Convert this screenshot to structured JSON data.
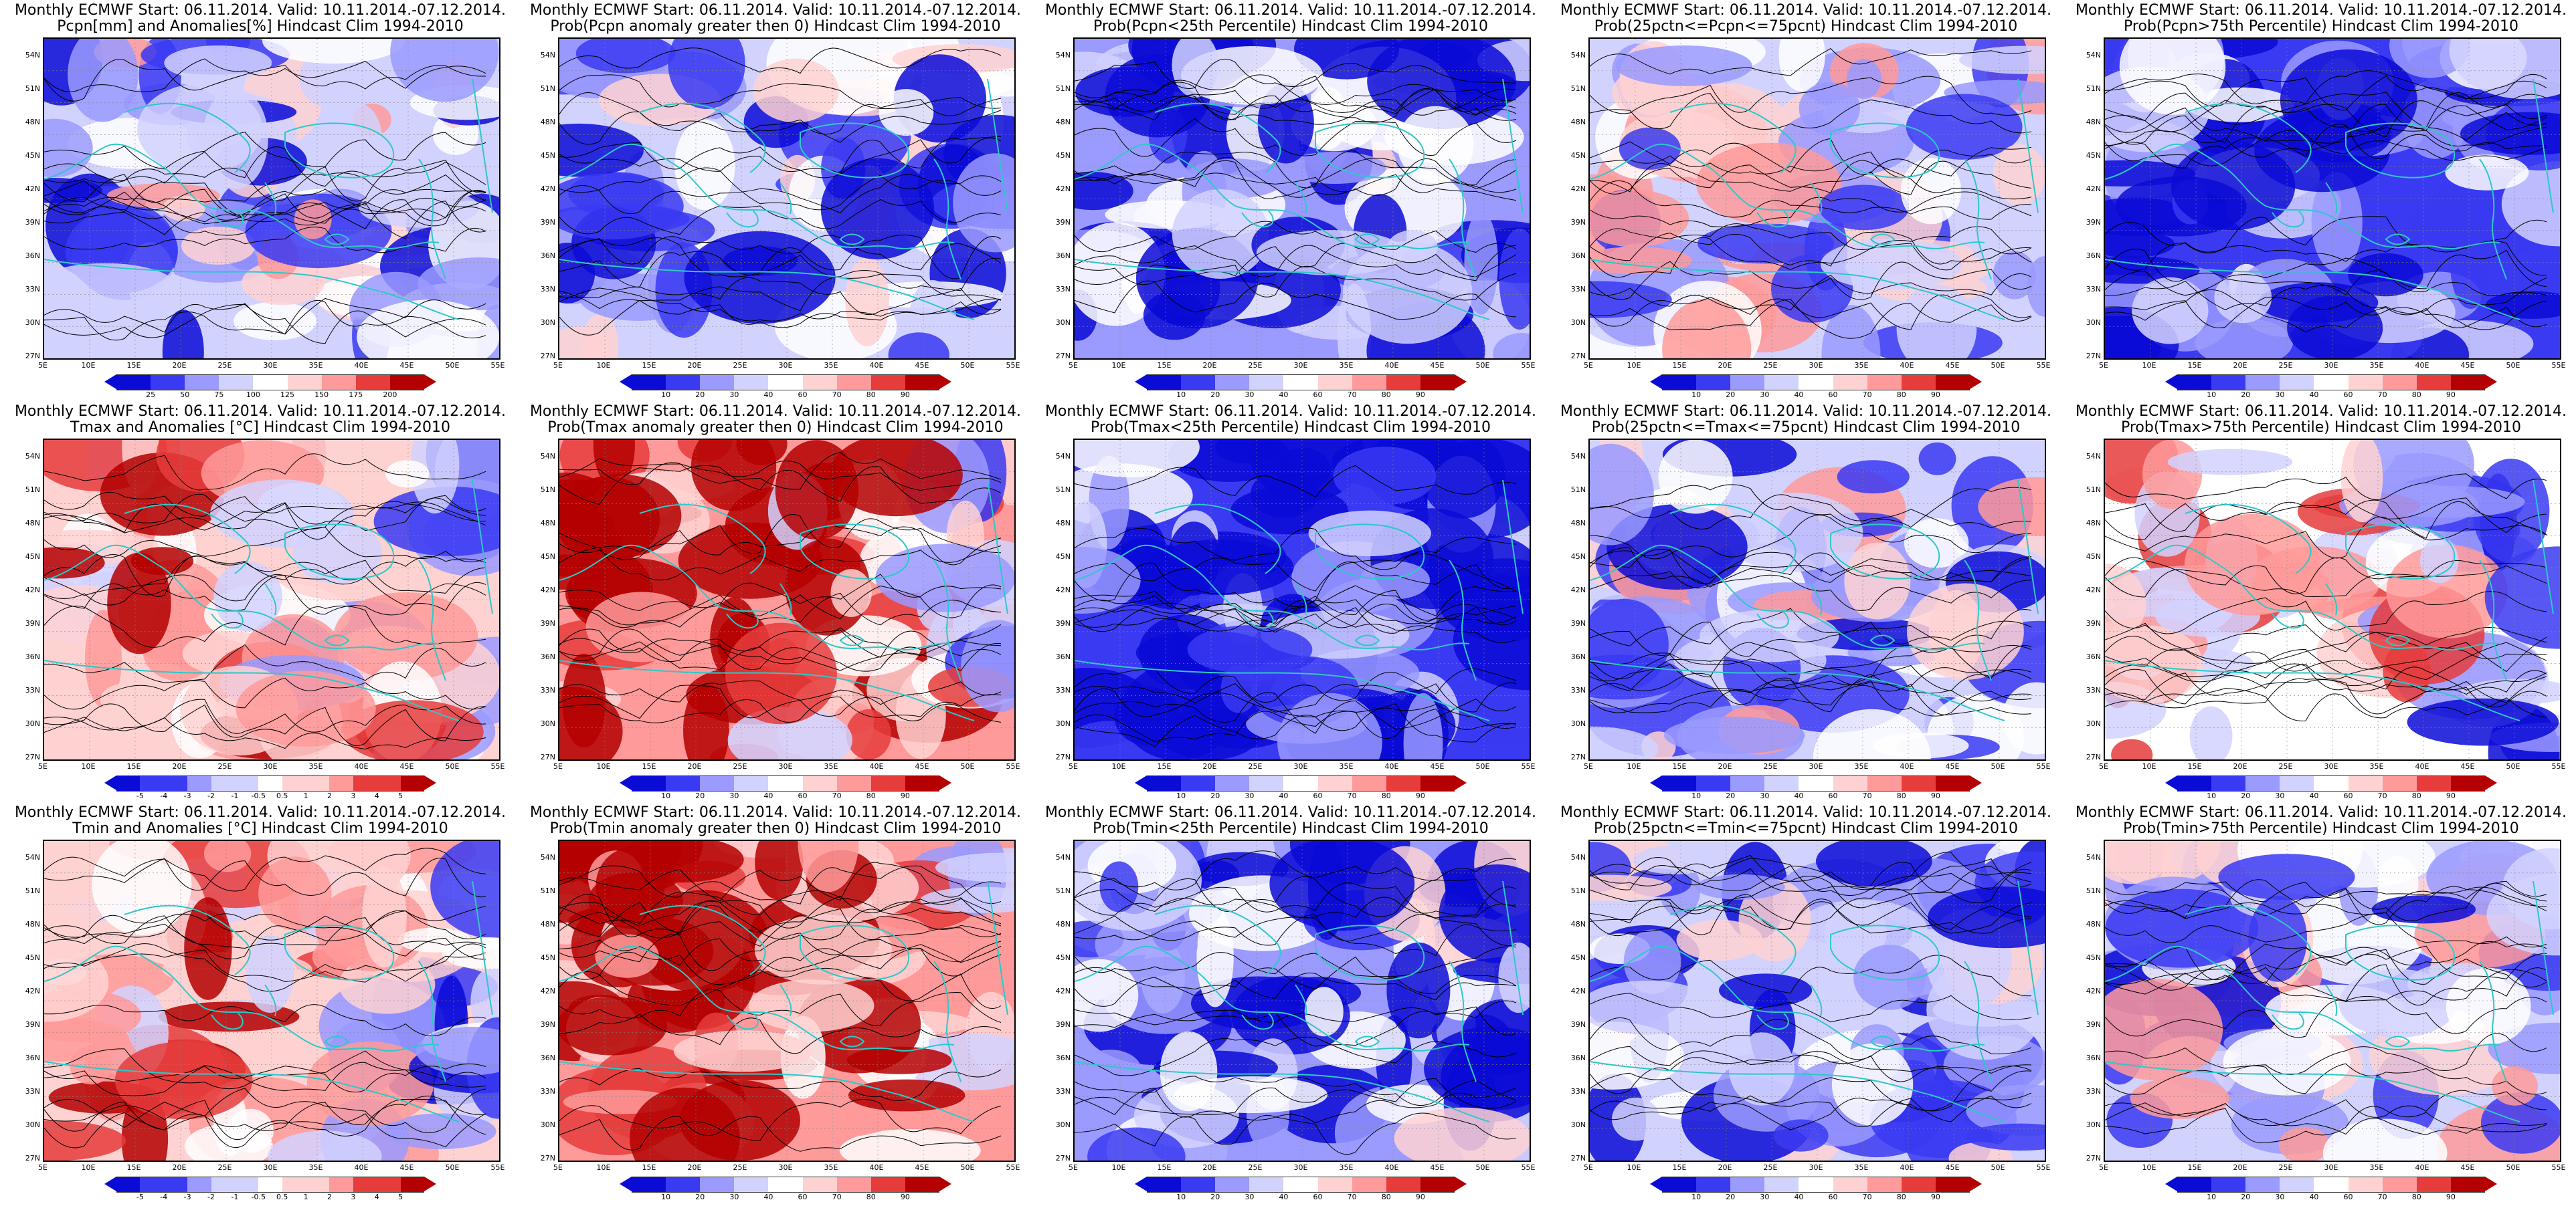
{
  "layout_rows": 3,
  "layout_cols": 5,
  "panels": [
    {
      "title1": "Monthly ECMWF Start: 06.11.2014. Valid: 10.11.2014.-07.12.2014.",
      "title2": "Pcpn[mm] and Anomalies[%] Hindcast Clim 1994-2010",
      "scheme": "anom",
      "bias": -0.3,
      "seed": 11,
      "legend": [
        "25",
        "50",
        "75",
        "100",
        "125",
        "150",
        "175",
        "200"
      ]
    },
    {
      "title1": "Monthly ECMWF Start: 06.11.2014. Valid: 10.11.2014.-07.12.2014.",
      "title2": "Prob(Pcpn anomaly greater then 0) Hindcast Clim 1994-2010",
      "scheme": "prob",
      "bias": -0.35,
      "seed": 12,
      "legend": [
        "10",
        "20",
        "30",
        "40",
        "60",
        "70",
        "80",
        "90"
      ]
    },
    {
      "title1": "Monthly ECMWF Start: 06.11.2014. Valid: 10.11.2014.-07.12.2014.",
      "title2": "Prob(Pcpn<25th Percentile) Hindcast Clim 1994-2010",
      "scheme": "prob",
      "bias": -0.6,
      "seed": 13,
      "legend": [
        "10",
        "20",
        "30",
        "40",
        "60",
        "70",
        "80",
        "90"
      ]
    },
    {
      "title1": "Monthly ECMWF Start: 06.11.2014. Valid: 10.11.2014.-07.12.2014.",
      "title2": "Prob(25pctn<=Pcpn<=75pcnt) Hindcast Clim 1994-2010",
      "scheme": "prob",
      "bias": -0.15,
      "seed": 14,
      "legend": [
        "10",
        "20",
        "30",
        "40",
        "60",
        "70",
        "80",
        "90"
      ]
    },
    {
      "title1": "Monthly ECMWF Start: 06.11.2014. Valid: 10.11.2014.-07.12.2014.",
      "title2": "Prob(Pcpn>75th Percentile) Hindcast Clim 1994-2010",
      "scheme": "prob",
      "bias": -0.65,
      "seed": 15,
      "legend": [
        "10",
        "20",
        "30",
        "40",
        "60",
        "70",
        "80",
        "90"
      ]
    },
    {
      "title1": "Monthly ECMWF Start: 06.11.2014. Valid: 10.11.2014.-07.12.2014.",
      "title2": "Tmax and Anomalies [°C] Hindcast Clim 1994-2010",
      "scheme": "anom",
      "bias": 0.25,
      "seed": 21,
      "legend": [
        "-5",
        "-4",
        "-3",
        "-2",
        "-1",
        "-0.5",
        "0.5",
        "1",
        "2",
        "3",
        "4",
        "5"
      ]
    },
    {
      "title1": "Monthly ECMWF Start: 06.11.2014. Valid: 10.11.2014.-07.12.2014.",
      "title2": "Prob(Tmax anomaly greater then 0) Hindcast Clim 1994-2010",
      "scheme": "prob",
      "bias": 0.55,
      "seed": 22,
      "legend": [
        "10",
        "20",
        "30",
        "40",
        "60",
        "70",
        "80",
        "90"
      ]
    },
    {
      "title1": "Monthly ECMWF Start: 06.11.2014. Valid: 10.11.2014.-07.12.2014.",
      "title2": "Prob(Tmax<25th Percentile) Hindcast Clim 1994-2010",
      "scheme": "prob",
      "bias": -0.7,
      "seed": 23,
      "legend": [
        "10",
        "20",
        "30",
        "40",
        "60",
        "70",
        "80",
        "90"
      ]
    },
    {
      "title1": "Monthly ECMWF Start: 06.11.2014. Valid: 10.11.2014.-07.12.2014.",
      "title2": "Prob(25pctn<=Tmax<=75pcnt) Hindcast Clim 1994-2010",
      "scheme": "prob",
      "bias": -0.2,
      "seed": 24,
      "legend": [
        "10",
        "20",
        "30",
        "40",
        "60",
        "70",
        "80",
        "90"
      ]
    },
    {
      "title1": "Monthly ECMWF Start: 06.11.2014. Valid: 10.11.2014.-07.12.2014.",
      "title2": "Prob(Tmax>75th Percentile) Hindcast Clim 1994-2010",
      "scheme": "prob",
      "bias": 0.05,
      "seed": 25,
      "legend": [
        "10",
        "20",
        "30",
        "40",
        "60",
        "70",
        "80",
        "90"
      ]
    },
    {
      "title1": "Monthly ECMWF Start: 06.11.2014. Valid: 10.11.2014.-07.12.2014.",
      "title2": "Tmin and Anomalies [°C] Hindcast Clim 1994-2010",
      "scheme": "anom",
      "bias": 0.15,
      "seed": 31,
      "legend": [
        "-5",
        "-4",
        "-3",
        "-2",
        "-1",
        "-0.5",
        "0.5",
        "1",
        "2",
        "3",
        "4",
        "5"
      ]
    },
    {
      "title1": "Monthly ECMWF Start: 06.11.2014. Valid: 10.11.2014.-07.12.2014.",
      "title2": "Prob(Tmin anomaly greater then 0) Hindcast Clim 1994-2010",
      "scheme": "prob",
      "bias": 0.6,
      "seed": 32,
      "legend": [
        "10",
        "20",
        "30",
        "40",
        "60",
        "70",
        "80",
        "90"
      ]
    },
    {
      "title1": "Monthly ECMWF Start: 06.11.2014. Valid: 10.11.2014.-07.12.2014.",
      "title2": "Prob(Tmin<25th Percentile) Hindcast Clim 1994-2010",
      "scheme": "prob",
      "bias": -0.45,
      "seed": 33,
      "legend": [
        "10",
        "20",
        "30",
        "40",
        "60",
        "70",
        "80",
        "90"
      ]
    },
    {
      "title1": "Monthly ECMWF Start: 06.11.2014. Valid: 10.11.2014.-07.12.2014.",
      "title2": "Prob(25pctn<=Tmin<=75pcnt) Hindcast Clim 1994-2010",
      "scheme": "prob",
      "bias": -0.35,
      "seed": 34,
      "legend": [
        "10",
        "20",
        "30",
        "40",
        "60",
        "70",
        "80",
        "90"
      ]
    },
    {
      "title1": "Monthly ECMWF Start: 06.11.2014. Valid: 10.11.2014.-07.12.2014.",
      "title2": "Prob(Tmin>75th Percentile) Hindcast Clim 1994-2010",
      "scheme": "prob",
      "bias": -0.2,
      "seed": 35,
      "legend": [
        "10",
        "20",
        "30",
        "40",
        "60",
        "70",
        "80",
        "90"
      ]
    }
  ],
  "lat_labels": [
    "54N",
    "51N",
    "48N",
    "45N",
    "42N",
    "39N",
    "36N",
    "33N",
    "30N",
    "27N"
  ],
  "lon_labels": [
    "5E",
    "10E",
    "15E",
    "20E",
    "25E",
    "30E",
    "35E",
    "40E",
    "45E",
    "50E",
    "55E"
  ],
  "colors": {
    "blue_dark": "#0b0bd6",
    "blue_mid": "#3a3af2",
    "blue_light": "#9a9aff",
    "blue_pale": "#d2d2ff",
    "red_dark": "#b40000",
    "red_mid": "#e63c3c",
    "red_light": "#ff9a9a",
    "red_pale": "#ffd2d2",
    "coast": "#2ec8c8",
    "contour": "#000000"
  }
}
